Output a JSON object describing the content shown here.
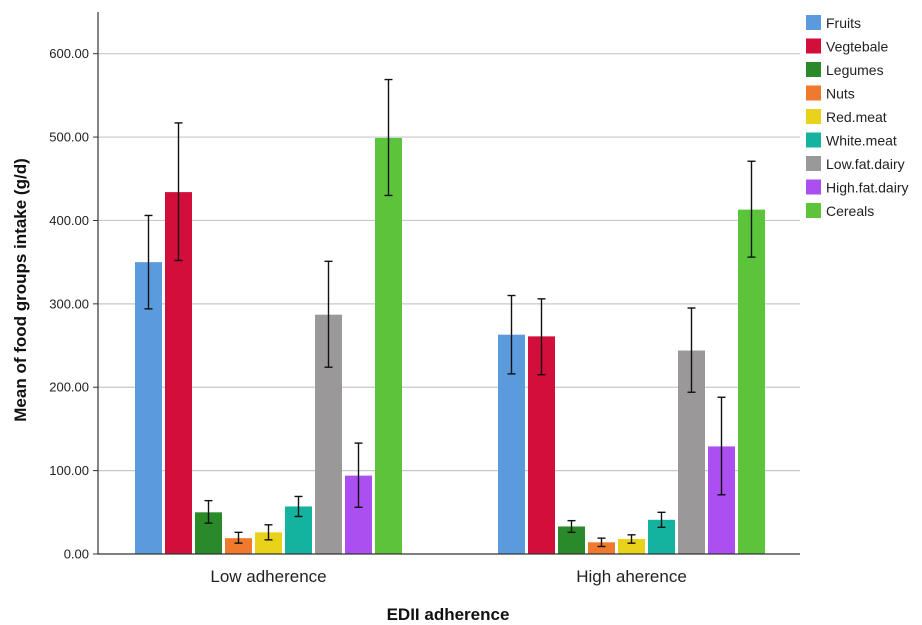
{
  "chart_data": {
    "type": "bar",
    "title": "",
    "xlabel": "EDII adherence",
    "ylabel": "Mean of food groups intake (g/d)",
    "categories": [
      "Low adherence",
      "High aherence"
    ],
    "ylim": [
      0,
      650
    ],
    "yticks": [
      "0.00",
      "100.00",
      "200.00",
      "300.00",
      "400.00",
      "500.00",
      "600.00"
    ],
    "grid": true,
    "legend_position": "top-right",
    "error_bars": true,
    "series": [
      {
        "name": "Fruits",
        "color": "#5b9bdd",
        "values": [
          350,
          263
        ],
        "err_low": [
          294,
          216
        ],
        "err_high": [
          406,
          310
        ]
      },
      {
        "name": "Vegtebale",
        "color": "#d20f3a",
        "values": [
          434,
          261
        ],
        "err_low": [
          352,
          215
        ],
        "err_high": [
          517,
          306
        ]
      },
      {
        "name": "Legumes",
        "color": "#2a8a2a",
        "values": [
          50,
          33
        ],
        "err_low": [
          37,
          26
        ],
        "err_high": [
          64,
          40
        ]
      },
      {
        "name": "Nuts",
        "color": "#ef7a2d",
        "values": [
          19,
          14
        ],
        "err_low": [
          13,
          9
        ],
        "err_high": [
          26,
          19
        ]
      },
      {
        "name": "Red.meat",
        "color": "#e8d21a",
        "values": [
          26,
          18
        ],
        "err_low": [
          17,
          13
        ],
        "err_high": [
          35,
          23
        ]
      },
      {
        "name": "White.meat",
        "color": "#14b3a0",
        "values": [
          57,
          41
        ],
        "err_low": [
          45,
          32
        ],
        "err_high": [
          69,
          50
        ]
      },
      {
        "name": "Low.fat.dairy",
        "color": "#9a9899",
        "values": [
          287,
          244
        ],
        "err_low": [
          224,
          194
        ],
        "err_high": [
          351,
          295
        ]
      },
      {
        "name": "High.fat.dairy",
        "color": "#ac4ff0",
        "values": [
          94,
          129
        ],
        "err_low": [
          56,
          71
        ],
        "err_high": [
          133,
          188
        ]
      },
      {
        "name": "Cereals",
        "color": "#5cc43a",
        "values": [
          499,
          413
        ],
        "err_low": [
          430,
          356
        ],
        "err_high": [
          569,
          471
        ]
      }
    ]
  }
}
